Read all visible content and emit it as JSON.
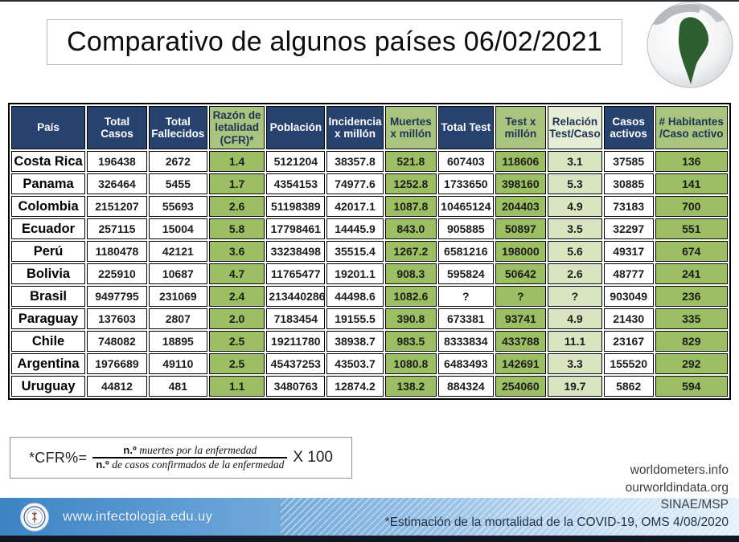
{
  "title": "Comparativo de algunos países 06/02/2021",
  "colors": {
    "navy": "#27426e",
    "header_green": "#a8c47e",
    "cell_green": "#9dbf63",
    "header_lightgreen": "#e5edd6",
    "cell_lightgreen": "#d9e5c1",
    "bar_blue": "#3d84c4",
    "bottom_strip": "#111722",
    "south_america_green": "#2e5e30"
  },
  "chart_data": {
    "type": "table",
    "title": "Comparativo de algunos países 06/02/2021",
    "columns": [
      {
        "label": "País",
        "style": "navy"
      },
      {
        "label": "Total Casos",
        "style": "navy"
      },
      {
        "label": "Total Fallecidos",
        "style": "navy"
      },
      {
        "label": "Razón de letalidad (CFR)*",
        "style": "green"
      },
      {
        "label": "Población",
        "style": "navy"
      },
      {
        "label": "Incidencia x millón",
        "style": "navy"
      },
      {
        "label": "Muertes x millón",
        "style": "green"
      },
      {
        "label": "Total Test",
        "style": "navy"
      },
      {
        "label": "Test x millón",
        "style": "green"
      },
      {
        "label": "Relación Test/Caso",
        "style": "lightgreen"
      },
      {
        "label": "Casos activos",
        "style": "navy"
      },
      {
        "label": "# Habitantes /Caso activo",
        "style": "green"
      }
    ],
    "col_widths_pct": [
      10.6,
      8.6,
      8.4,
      8.0,
      8.4,
      8.1,
      7.4,
      7.9,
      7.3,
      7.8,
      7.1,
      10.4
    ],
    "rows": [
      [
        "Costa Rica",
        "196438",
        "2672",
        "1.4",
        "5121204",
        "38357.8",
        "521.8",
        "607403",
        "118606",
        "3.1",
        "37585",
        "136"
      ],
      [
        "Panama",
        "326464",
        "5455",
        "1.7",
        "4354153",
        "74977.6",
        "1252.8",
        "1733650",
        "398160",
        "5.3",
        "30885",
        "141"
      ],
      [
        "Colombia",
        "2151207",
        "55693",
        "2.6",
        "51198389",
        "42017.1",
        "1087.8",
        "10465124",
        "204403",
        "4.9",
        "73183",
        "700"
      ],
      [
        "Ecuador",
        "257115",
        "15004",
        "5.8",
        "17798461",
        "14445.9",
        "843.0",
        "905885",
        "50897",
        "3.5",
        "32297",
        "551"
      ],
      [
        "Perú",
        "1180478",
        "42121",
        "3.6",
        "33238498",
        "35515.4",
        "1267.2",
        "6581216",
        "198000",
        "5.6",
        "49317",
        "674"
      ],
      [
        "Bolivia",
        "225910",
        "10687",
        "4.7",
        "11765477",
        "19201.1",
        "908.3",
        "595824",
        "50642",
        "2.6",
        "48777",
        "241"
      ],
      [
        "Brasil",
        "9497795",
        "231069",
        "2.4",
        "213440286",
        "44498.6",
        "1082.6",
        "?",
        "?",
        "?",
        "903049",
        "236"
      ],
      [
        "Paraguay",
        "137603",
        "2807",
        "2.0",
        "7183454",
        "19155.5",
        "390.8",
        "673381",
        "93741",
        "4.9",
        "21430",
        "335"
      ],
      [
        "Chile",
        "748082",
        "18895",
        "2.5",
        "19211780",
        "38938.7",
        "983.5",
        "8333834",
        "433788",
        "11.1",
        "23167",
        "829"
      ],
      [
        "Argentina",
        "1976689",
        "49110",
        "2.5",
        "45437253",
        "43503.7",
        "1080.8",
        "6483493",
        "142691",
        "3.3",
        "155520",
        "292"
      ],
      [
        "Uruguay",
        "44812",
        "481",
        "1.1",
        "3480763",
        "12874.2",
        "138.2",
        "884324",
        "254060",
        "19.7",
        "5862",
        "594"
      ]
    ]
  },
  "formula": {
    "lhs": "*CFR%=",
    "num_prefix": "n.º",
    "num_text": "muertes por la enfermedad",
    "den_prefix": "n.º",
    "den_text": "de casos confirmados de la enfermedad",
    "rhs": "X 100"
  },
  "credits": [
    "worldometers.info",
    "ourworldindata.org",
    "SINAE/MSP",
    "*Estimación de la mortalidad de la COVID-19, OMS 4/08/2020"
  ],
  "footer": {
    "url": "www.infectologia.edu.uy"
  }
}
